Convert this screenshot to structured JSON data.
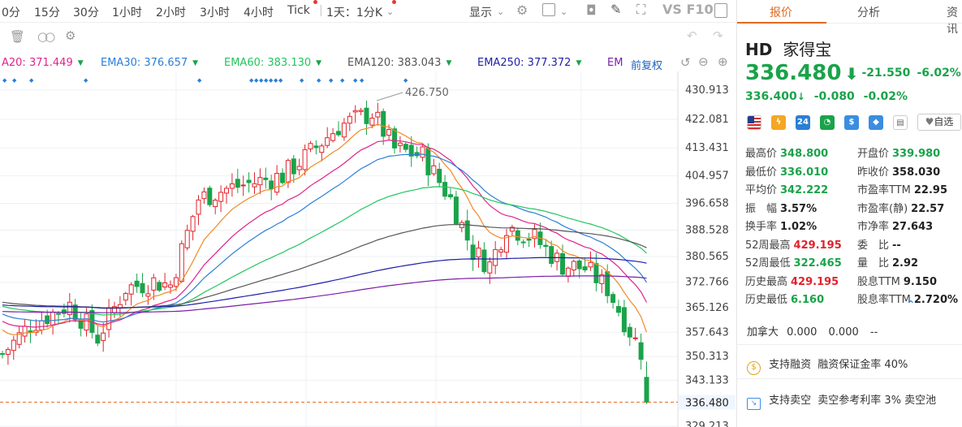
{
  "toolbar": {
    "intervals": [
      "0分",
      "15分",
      "30分",
      "1小时",
      "2小时",
      "3小时",
      "4小时",
      "Tick"
    ],
    "period_select": "1天：1分K",
    "display_label": "显示",
    "right_text": "VS F10"
  },
  "ema": {
    "items": [
      {
        "label": "A20:",
        "value": "371.449",
        "color": "#e0238c"
      },
      {
        "label": "EMA30:",
        "value": "376.657",
        "color": "#2b7fd6"
      },
      {
        "label": "EMA60:",
        "value": "383.130",
        "color": "#22c55e"
      },
      {
        "label": "EMA120:",
        "value": "383.043",
        "color": "#555555"
      },
      {
        "label": "EMA250:",
        "value": "377.372",
        "color": "#1f1fa8"
      },
      {
        "label": "EM",
        "value": "",
        "color": "#7a1fa8"
      }
    ],
    "adjust_label": "前复权"
  },
  "chart_data": {
    "type": "candlestick",
    "y_ticks": [
      "430.913",
      "422.081",
      "413.431",
      "404.957",
      "396.658",
      "388.528",
      "380.565",
      "372.766",
      "365.126",
      "357.643",
      "350.313",
      "343.133",
      "336.480",
      "329.213"
    ],
    "ylim": [
      329.213,
      430.913
    ],
    "high_annotation": "426.750",
    "current_price_label": "336.480",
    "current_price": 336.48,
    "colors": {
      "up": "#e0232b",
      "down": "#1aa34a",
      "price_line": "#e06a1e"
    }
  },
  "quote": {
    "ticker": "HD",
    "name": "家得宝",
    "price": "336.480",
    "change": "-21.550",
    "change_pct": "-6.02%",
    "post_price": "336.400",
    "post_change": "-0.080",
    "post_change_pct": "-0.02%",
    "watch_label": "自选"
  },
  "tabs": [
    "报价",
    "分析",
    "资讯"
  ],
  "stats_left": [
    {
      "label": "最高价",
      "value": "348.800",
      "color": "green"
    },
    {
      "label": "最低价",
      "value": "336.010",
      "color": "green"
    },
    {
      "label": "平均价",
      "value": "342.222",
      "color": "green"
    },
    {
      "label": "振　幅",
      "value": "3.57%",
      "color": "dark"
    },
    {
      "label": "换手率",
      "value": "1.02%",
      "color": "dark"
    },
    {
      "label": "52周最高",
      "value": "429.195",
      "color": "red"
    },
    {
      "label": "52周最低",
      "value": "322.465",
      "color": "green"
    },
    {
      "label": "历史最高",
      "value": "429.195",
      "color": "red"
    },
    {
      "label": "历史最低",
      "value": "6.160",
      "color": "green"
    }
  ],
  "stats_right": [
    {
      "label": "开盘价",
      "value": "339.980",
      "color": "green"
    },
    {
      "label": "昨收价",
      "value": "358.030",
      "color": "dark"
    },
    {
      "label": "市盈率TTM",
      "value": "22.95",
      "color": "dark"
    },
    {
      "label": "市盈率(静)",
      "value": "22.57",
      "color": "dark"
    },
    {
      "label": "市净率",
      "value": "27.643",
      "color": "dark"
    },
    {
      "label": "委　比",
      "value": "--",
      "color": "dark"
    },
    {
      "label": "量　比",
      "value": "2.92",
      "color": "dark"
    },
    {
      "label": "股息TTM",
      "value": "9.150",
      "color": "dark"
    },
    {
      "label": "股息率TTM",
      "value": "2.720%",
      "color": "dark"
    }
  ],
  "canada": {
    "label": "加拿大",
    "v1": "0.000",
    "v2": "0.000",
    "v3": "--"
  },
  "margin": {
    "title": "支持融资",
    "text": "融资保证金率 40%"
  },
  "short": {
    "title": "支持卖空",
    "text": "卖空参考利率 3% 卖空池"
  }
}
